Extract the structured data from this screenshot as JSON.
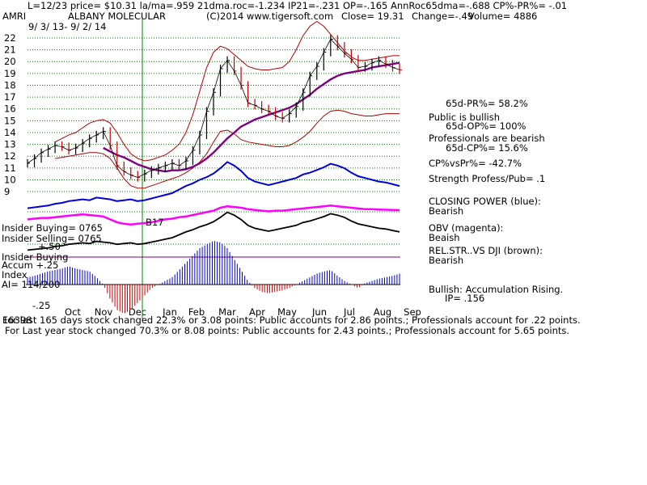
{
  "header": {
    "line1": "L=12/23  price= $10.31  la/ma=.959 21dma.roc=-1.234 IP21=-.231 OP=-.165 AnnRoc65dma=-.688 CP%-PR%= -.01",
    "ticker": "AMRI",
    "company": "ALBANY MOLECULAR",
    "copyright": "(C)2014 www.tigersoft.com",
    "close": "Close= 19.31",
    "change": "Change=-.49",
    "volume": "Volume= 4886",
    "date_range": "9/ 3/ 13-  9/ 2/ 14"
  },
  "annotations": {
    "stats": [
      "65d-PR%= 58.2%",
      "Public is bullish",
      "65d-OP%= 100%",
      "Professionals are bearish",
      "65d-CP%= 15.6%",
      "CP%vsPr%= -42.7%",
      "Strength Profess/Pub= .1"
    ],
    "closing_power": [
      "CLOSING POWER (blue):",
      "Bearish"
    ],
    "obv": [
      "OBV (magenta):",
      "Beaish"
    ],
    "relstr": [
      "REL.STR..VS DJI (brown):",
      "Bearish"
    ],
    "accum": [
      "Bullish: Accumulation Rising.",
      "IP=  .156"
    ],
    "insider_buying": "Insider Buying= 0765",
    "insider_selling": "Insider Selling= 0765",
    "insider_buying2": "Insider Buying",
    "b17": "B17",
    "accum_index": [
      "Accum  +.25",
      "Index"
    ],
    "ai": "AI= 114/200",
    "plus50": "+.50",
    "minus25": "-.25"
  },
  "footer": {
    "line1": "For last 165 days stock changed  22.3% or  3.08 points:  Public accounts for  2.86 points.;  Professionals account for  .22 points.",
    "line2": "For Last year stock changed  70.3% or  8.08 points:  Public accounts for  2.43 points.;  Professionals account for  5.65 points.",
    "overlap": "16398"
  },
  "chart_data": {
    "type": "line",
    "title": "AMRI  ALBANY MOLECULAR",
    "y_ticks": [
      22,
      21,
      20,
      19,
      18,
      17,
      16,
      15,
      14,
      13,
      12,
      11,
      10,
      9
    ],
    "ylim": [
      9,
      22
    ],
    "months": [
      "Oct",
      "Nov",
      "Dec",
      "Jan",
      "Feb",
      "Mar",
      "Apr",
      "May",
      "Jun",
      "Jul",
      "Aug",
      "Sep"
    ],
    "grid": true,
    "price_series": {
      "name": "Price",
      "values": [
        11.4,
        11.8,
        12.3,
        12.6,
        12.9,
        12.8,
        12.5,
        12.7,
        13.1,
        13.5,
        13.8,
        14.1,
        12.9,
        11.2,
        10.7,
        10.4,
        10.2,
        10.5,
        10.8,
        11.0,
        11.2,
        11.4,
        11.2,
        11.6,
        12.5,
        13.8,
        15.8,
        17.4,
        19.4,
        20.1,
        19.2,
        18.0,
        16.5,
        16.3,
        16.0,
        15.8,
        15.4,
        15.2,
        15.6,
        16.2,
        17.4,
        18.8,
        19.6,
        20.8,
        21.9,
        21.3,
        20.7,
        20.2,
        19.5,
        19.6,
        19.9,
        20.1,
        19.8,
        19.5,
        19.31
      ]
    },
    "ma_series": {
      "name": "Moving average (purple)",
      "values": [
        null,
        null,
        null,
        null,
        null,
        null,
        null,
        null,
        null,
        null,
        null,
        12.7,
        12.4,
        12.1,
        11.9,
        11.6,
        11.3,
        11.1,
        10.9,
        10.8,
        10.7,
        10.8,
        10.8,
        10.9,
        11.1,
        11.4,
        11.8,
        12.3,
        12.9,
        13.5,
        14.0,
        14.5,
        14.8,
        15.1,
        15.3,
        15.5,
        15.7,
        15.9,
        16.1,
        16.4,
        16.8,
        17.2,
        17.7,
        18.1,
        18.5,
        18.8,
        19.0,
        19.1,
        19.2,
        19.3,
        19.5,
        19.6,
        19.7,
        19.8,
        19.9
      ]
    },
    "upper_band": {
      "name": "Upper band",
      "values": [
        null,
        null,
        null,
        null,
        13.2,
        13.5,
        13.8,
        14.0,
        14.4,
        14.8,
        15.0,
        15.1,
        14.8,
        14.0,
        13.0,
        12.2,
        11.8,
        11.6,
        11.7,
        11.9,
        12.1,
        12.5,
        13.0,
        14.0,
        15.5,
        17.5,
        19.5,
        20.8,
        21.3,
        21.1,
        20.6,
        20.1,
        19.6,
        19.4,
        19.3,
        19.3,
        19.4,
        19.5,
        20.0,
        21.0,
        22.2,
        23.0,
        23.4,
        23.0,
        22.3,
        21.6,
        20.9,
        20.4,
        20.1,
        20.1,
        20.2,
        20.3,
        20.4,
        20.5,
        20.5
      ]
    },
    "lower_band": {
      "name": "Lower band",
      "values": [
        null,
        null,
        null,
        null,
        11.8,
        11.9,
        12.0,
        12.1,
        12.2,
        12.3,
        12.3,
        12.2,
        11.8,
        11.0,
        10.1,
        9.5,
        9.3,
        9.3,
        9.5,
        9.7,
        9.9,
        10.1,
        10.3,
        10.6,
        11.0,
        11.5,
        12.2,
        13.2,
        14.1,
        14.2,
        13.9,
        13.4,
        13.2,
        13.1,
        13.0,
        12.9,
        12.8,
        12.8,
        12.9,
        13.2,
        13.6,
        14.1,
        14.8,
        15.4,
        15.8,
        15.9,
        15.8,
        15.6,
        15.5,
        15.4,
        15.4,
        15.5,
        15.6,
        15.6,
        15.6
      ]
    },
    "closing_power": {
      "name": "CLOSING POWER (blue)",
      "values": [
        0.4,
        0.5,
        0.6,
        0.7,
        0.9,
        1.0,
        1.2,
        1.3,
        1.4,
        1.3,
        1.6,
        1.5,
        1.4,
        1.2,
        1.3,
        1.4,
        1.2,
        1.3,
        1.5,
        1.7,
        1.9,
        2.1,
        2.5,
        2.9,
        3.2,
        3.6,
        3.9,
        4.3,
        4.9,
        5.6,
        5.2,
        4.6,
        3.8,
        3.4,
        3.2,
        3.0,
        3.2,
        3.4,
        3.6,
        3.8,
        4.2,
        4.4,
        4.7,
        5.0,
        5.4,
        5.2,
        4.9,
        4.4,
        4.0,
        3.8,
        3.6,
        3.4,
        3.3,
        3.1,
        2.9
      ]
    },
    "obv": {
      "name": "OBV (magenta)",
      "values": [
        0.2,
        0.25,
        0.3,
        0.3,
        0.35,
        0.4,
        0.45,
        0.5,
        0.55,
        0.5,
        0.45,
        0.4,
        0.2,
        0.0,
        -0.1,
        -0.15,
        -0.1,
        -0.05,
        0.0,
        0.1,
        0.2,
        0.25,
        0.35,
        0.4,
        0.5,
        0.6,
        0.7,
        0.8,
        1.0,
        1.1,
        1.05,
        1.0,
        0.9,
        0.85,
        0.8,
        0.75,
        0.8,
        0.8,
        0.85,
        0.9,
        0.95,
        1.0,
        1.05,
        1.1,
        1.15,
        1.1,
        1.05,
        1.0,
        0.95,
        0.9,
        0.9,
        0.88,
        0.86,
        0.85,
        0.84
      ]
    },
    "accum_index": {
      "name": "Accumulation Index",
      "values": [
        0.1,
        0.12,
        0.15,
        0.18,
        0.2,
        0.22,
        0.25,
        0.22,
        0.2,
        0.18,
        0.1,
        0.0,
        -0.2,
        -0.35,
        -0.4,
        -0.35,
        -0.25,
        -0.15,
        -0.05,
        0.0,
        0.05,
        0.1,
        0.2,
        0.3,
        0.4,
        0.5,
        0.55,
        0.6,
        0.58,
        0.5,
        0.35,
        0.2,
        0.05,
        -0.05,
        -0.1,
        -0.12,
        -0.1,
        -0.08,
        -0.05,
        0.0,
        0.05,
        0.1,
        0.15,
        0.18,
        0.2,
        0.12,
        0.05,
        0.0,
        -0.05,
        0.02,
        0.05,
        0.08,
        0.1,
        0.12,
        0.15
      ]
    }
  }
}
